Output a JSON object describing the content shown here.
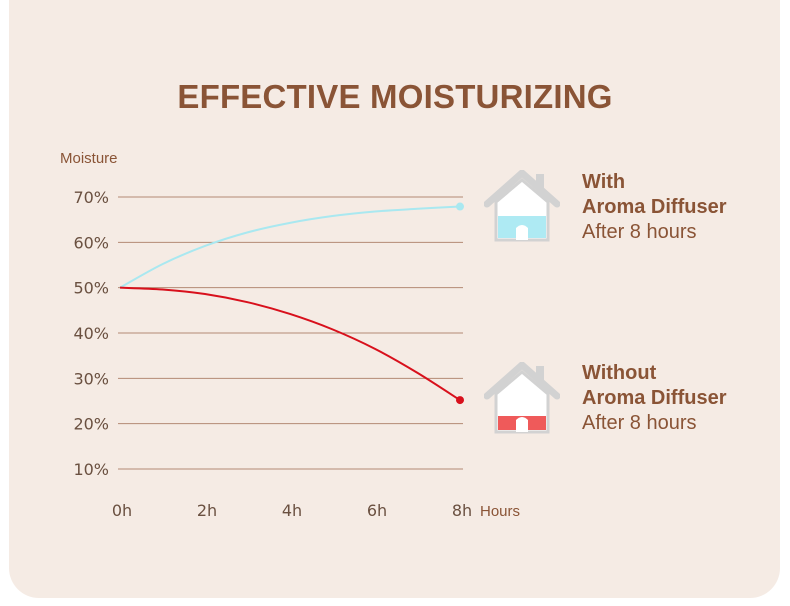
{
  "chart_data": {
    "type": "line",
    "title": "EFFECTIVE MOISTURIZING",
    "ylabel": "Moisture",
    "xlabel": "Hours",
    "x_ticks": [
      "0h",
      "2h",
      "4h",
      "6h",
      "8h"
    ],
    "y_ticks": [
      "70%",
      "60%",
      "50%",
      "40%",
      "30%",
      "20%",
      "10%"
    ],
    "x_range": [
      0,
      8
    ],
    "y_range": [
      10,
      70
    ],
    "grid": true,
    "series": [
      {
        "name": "With Aroma Diffuser",
        "color": "#a9e8f0",
        "x": [
          0,
          1,
          2,
          3,
          4,
          5,
          6,
          7,
          8
        ],
        "y": [
          50,
          55.2,
          59.2,
          62.2,
          64.3,
          65.8,
          66.8,
          67.4,
          67.9
        ]
      },
      {
        "name": "Without Aroma Diffuser",
        "color": "#d8101c",
        "x": [
          0,
          1,
          2,
          3,
          4,
          5,
          6,
          7,
          8
        ],
        "y": [
          50,
          49.6,
          48.6,
          46.8,
          44.2,
          40.8,
          36.5,
          31.2,
          25.2
        ]
      }
    ]
  },
  "legend": {
    "with": {
      "line1": "With",
      "line2": "Aroma Diffuser",
      "line3": "After 8 hours",
      "fill_color": "#aeeaf3",
      "icon": "house-icon"
    },
    "without": {
      "line1": "Without",
      "line2": "Aroma Diffuser",
      "line3": "After 8 hours",
      "fill_color": "#ef5a5a",
      "icon": "house-icon"
    }
  }
}
